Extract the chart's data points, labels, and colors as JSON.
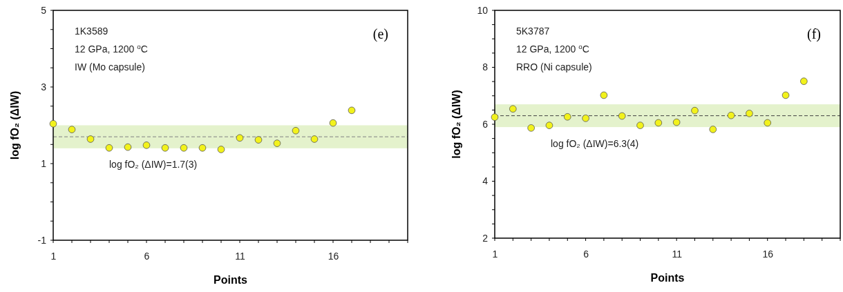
{
  "chart_data": [
    {
      "type": "scatter",
      "title": "(e)",
      "xlabel": "Points",
      "ylabel": "log fO₂ (ΔIW)",
      "annotations": [
        "1K3589",
        "12 GPa, 1200 $^{o}$C",
        "IW (Mo capsule)"
      ],
      "x": [
        1,
        2,
        3,
        4,
        5,
        6,
        7,
        8,
        9,
        10,
        11,
        12,
        13,
        14,
        15,
        16,
        17
      ],
      "series": [
        {
          "color": "#f2f21c",
          "values": [
            2.04,
            1.89,
            1.64,
            1.41,
            1.43,
            1.48,
            1.41,
            1.41,
            1.41,
            1.37,
            1.67,
            1.62,
            1.53,
            1.86,
            1.64,
            2.06,
            2.39
          ]
        }
      ],
      "xlim": [
        1,
        20
      ],
      "xticks": [
        1,
        6,
        11,
        16
      ],
      "ylim": [
        -1,
        5
      ],
      "yticks": [
        -1,
        1,
        3,
        5
      ],
      "marker": "circle",
      "grid": false,
      "ref_lines": [
        {
          "axis": "y",
          "value": 1.7,
          "label": "log fO₂ (ΔIW)=1.7(3)",
          "color": "#808080",
          "line_style": "dashed"
        }
      ],
      "bands": [
        {
          "axis": "y",
          "from": 1.4,
          "to": 2.0,
          "color": "#e4f2cc"
        }
      ]
    },
    {
      "type": "scatter",
      "title": "(f)",
      "xlabel": "Points",
      "ylabel": "log fO₂ (ΔIW)",
      "annotations": [
        "5K3787",
        "12 GPa, 1200 $^{o}$C",
        "RRO (Ni capsule)"
      ],
      "x": [
        1,
        2,
        3,
        4,
        5,
        6,
        7,
        8,
        9,
        10,
        11,
        12,
        13,
        14,
        15,
        16,
        17,
        18
      ],
      "series": [
        {
          "color": "#f2f21c",
          "values": [
            6.25,
            6.54,
            5.87,
            5.96,
            6.26,
            6.21,
            7.02,
            6.29,
            5.96,
            6.05,
            6.07,
            6.48,
            5.82,
            6.31,
            6.38,
            6.05,
            7.02,
            7.51
          ]
        }
      ],
      "xlim": [
        1,
        20
      ],
      "xticks": [
        1,
        6,
        11,
        16
      ],
      "ylim": [
        2,
        10
      ],
      "yticks": [
        2,
        4,
        6,
        8,
        10
      ],
      "marker": "circle",
      "grid": false,
      "ref_lines": [
        {
          "axis": "y",
          "value": 6.3,
          "label": "log fO₂ (ΔIW)=6.3(4)",
          "color": "#404040",
          "line_style": "dashed"
        }
      ],
      "bands": [
        {
          "axis": "y",
          "from": 5.9,
          "to": 6.7,
          "color": "#e4f2cc"
        }
      ]
    }
  ]
}
